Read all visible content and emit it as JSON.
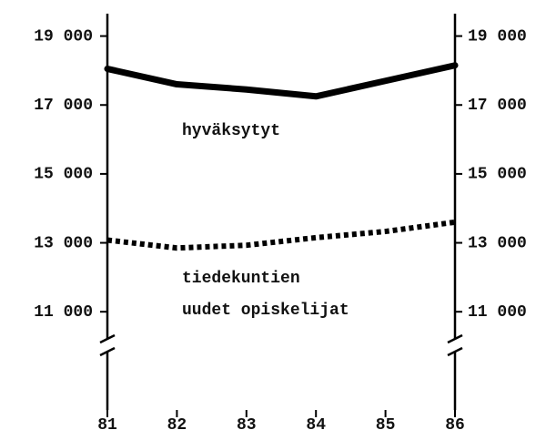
{
  "chart_data": {
    "type": "line",
    "x": [
      81,
      82,
      83,
      84,
      85,
      86
    ],
    "series": [
      {
        "color": "#000000",
        "style": "solid",
        "values": [
          18050,
          17600,
          17450,
          17250,
          17700,
          18150
        ]
      },
      {
        "color": "#000000",
        "style": "dotted",
        "values": [
          13080,
          12850,
          12930,
          13150,
          13330,
          13600
        ]
      }
    ],
    "annotations": [
      "hyväksytyt",
      "tiedekuntien",
      "uudet opiskelijat"
    ],
    "xlim": [
      81,
      86
    ],
    "xticks": [
      81,
      82,
      83,
      84,
      85,
      86
    ],
    "ylim": [
      8150,
      19650
    ],
    "yticks": [
      {
        "value": 11000,
        "label": "11 000"
      },
      {
        "value": 13000,
        "label": "13 000"
      },
      {
        "value": 15000,
        "label": "15 000"
      },
      {
        "value": 17000,
        "label": "17 000"
      },
      {
        "value": 19000,
        "label": "19 000"
      }
    ],
    "axis_break": true
  }
}
